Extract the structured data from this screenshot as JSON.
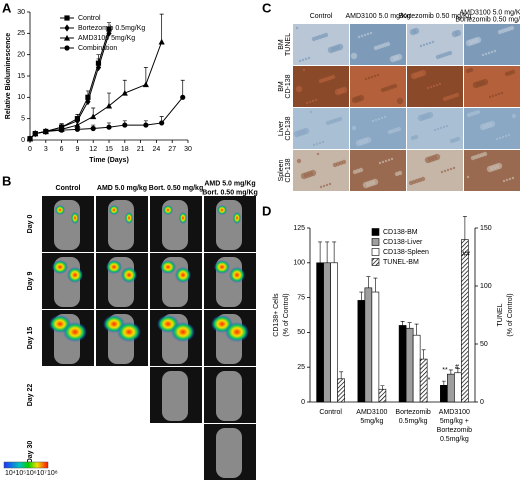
{
  "panels": {
    "a": {
      "letter": "A"
    },
    "b": {
      "letter": "B",
      "columns": [
        [
          "Control"
        ],
        [
          "AMD 5.0 mg/kg"
        ],
        [
          "Bort. 0.50 mg/kg"
        ],
        [
          "AMD 5.0 mg/Kg",
          "Bort. 0.50 mg/Kg"
        ]
      ],
      "rows": [
        "Day 0",
        "Day 9",
        "Day 15",
        "Day 22",
        "Day 30"
      ],
      "colorbar_labels": [
        "10⁴",
        "10⁵",
        "10⁶",
        "10⁷",
        "10⁸"
      ]
    },
    "c": {
      "letter": "C",
      "columns": [
        [
          "Control"
        ],
        [
          "AMD3100 5.0 mg/Kg"
        ],
        [
          "Bortezomib 0.50 mg/Kg"
        ],
        [
          "AMD3100 5.0 mg/Kg",
          "Bortezomib 0.50 mg/Kg"
        ]
      ],
      "rows": [
        [
          "BM",
          "TUNEL"
        ],
        [
          "BM",
          "CD-138"
        ],
        [
          "Liver",
          "CD-138"
        ],
        [
          "Spleen",
          "CD-138"
        ]
      ]
    },
    "d": {
      "letter": "D"
    }
  },
  "chart_data": [
    {
      "type": "line",
      "x_label": "Time (Days)",
      "y_label": "Relative Bioluminescence",
      "xlim": [
        0,
        30
      ],
      "xticks": [
        0,
        3,
        6,
        9,
        12,
        15,
        18,
        21,
        24,
        27,
        30
      ],
      "ylim": [
        0,
        30
      ],
      "yticks": [
        0,
        5,
        10,
        15,
        20,
        25,
        30
      ],
      "series": [
        {
          "name": "Control",
          "marker": "square",
          "color": "#000000",
          "x": [
            0,
            1,
            3,
            6,
            9,
            11,
            13,
            15
          ],
          "values": [
            0.3,
            1.5,
            2,
            3,
            5,
            10,
            18,
            26
          ],
          "errors": [
            0.3,
            0.5,
            0.5,
            0.8,
            1,
            1.5,
            2,
            1.5
          ]
        },
        {
          "name": "Bortezomib 0.5mg/Kg",
          "marker": "diamond",
          "color": "#000000",
          "x": [
            0,
            1,
            3,
            6,
            9,
            11,
            13,
            15
          ],
          "values": [
            0.3,
            1.5,
            2,
            3,
            4.5,
            9,
            17,
            25
          ],
          "errors": [
            0.3,
            0.5,
            0.5,
            0.8,
            1,
            1.5,
            2,
            1.5
          ]
        },
        {
          "name": "AMD3100 5mg/Kg",
          "marker": "triangle",
          "color": "#000000",
          "x": [
            0,
            1,
            3,
            6,
            9,
            12,
            15,
            18,
            22,
            25
          ],
          "values": [
            0.3,
            1.5,
            2,
            2.5,
            3.5,
            5.5,
            8,
            11,
            13,
            23
          ],
          "errors": [
            0.3,
            0.5,
            0.5,
            0.8,
            1,
            2,
            3,
            3,
            4,
            6.5
          ]
        },
        {
          "name": "Combination",
          "marker": "circle",
          "color": "#000000",
          "x": [
            0,
            1,
            3,
            6,
            9,
            12,
            15,
            18,
            22,
            25,
            29
          ],
          "values": [
            0.3,
            1.5,
            2,
            2.3,
            2.5,
            2.7,
            3,
            3.5,
            3.5,
            4,
            10
          ],
          "errors": [
            0.3,
            0.5,
            0.5,
            0.5,
            0.6,
            0.8,
            1,
            1,
            1,
            1.5,
            4
          ]
        }
      ]
    },
    {
      "type": "bar",
      "y_label": [
        "CD138+ Cells",
        "(% of Control)"
      ],
      "y2_label": [
        "TUNEL",
        "(% of Control)"
      ],
      "categories": [
        [
          "Control"
        ],
        [
          "AMD3100",
          "5mg/kg"
        ],
        [
          "Bortezomib",
          "0.5mg/kg"
        ],
        [
          "AMD3100",
          "5mg/kg +",
          "Bortezomib",
          "0.5mg/kg"
        ]
      ],
      "ylim": [
        0,
        125
      ],
      "yticks": [
        0,
        25,
        50,
        75,
        100,
        125
      ],
      "y2lim": [
        0,
        150
      ],
      "y2ticks": [
        0,
        50,
        100,
        150
      ],
      "series": [
        {
          "name": "CD138-BM",
          "color": "#000000",
          "values": [
            100,
            73,
            55,
            12
          ],
          "errors": [
            15,
            6,
            3,
            3
          ]
        },
        {
          "name": "CD138-Liver",
          "color": "#9e9e9e",
          "values": [
            100,
            82,
            53,
            20
          ],
          "errors": [
            15,
            8,
            4,
            3
          ]
        },
        {
          "name": "CD138-Spleen",
          "color": "#ffffff",
          "values": [
            100,
            79,
            48,
            21
          ],
          "errors": [
            15,
            10,
            8,
            3
          ]
        },
        {
          "name": "TUNEL-BM",
          "color": "#ffffff",
          "pattern": "hatch",
          "axis": "y2",
          "values": [
            20,
            11,
            37,
            140
          ],
          "errors": [
            6,
            3,
            8,
            20
          ]
        }
      ],
      "annotations": [
        "*",
        "**",
        "#",
        "##"
      ]
    }
  ]
}
